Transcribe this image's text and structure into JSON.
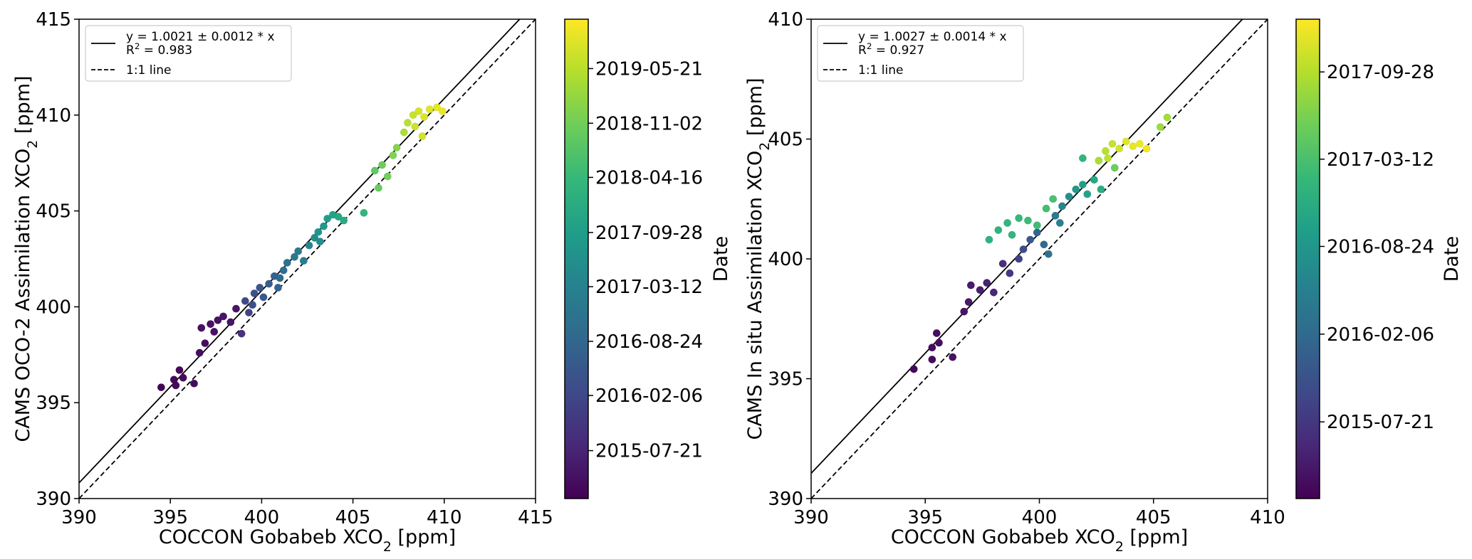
{
  "chart_data": [
    {
      "type": "scatter",
      "xlabel": "COCCON Gobabeb XCO₂ [ppm]",
      "ylabel": "CAMS OCO-2 Assimilation XCO₂ [ppm]",
      "xlim": [
        390,
        415
      ],
      "ylim": [
        390,
        415
      ],
      "xticks": [
        "390",
        "395",
        "400",
        "405",
        "410",
        "415"
      ],
      "yticks": [
        "390",
        "395",
        "400",
        "405",
        "410",
        "415"
      ],
      "fit_line": {
        "slope": 1.0021,
        "intercept": 0,
        "label": "y = 1.0021 ± 0.0012 * x"
      },
      "r2_label": "R² = 0.983",
      "one_to_one_label": "1:1 line",
      "legend_position": "upper left",
      "colorbar": {
        "label": "Date",
        "ticks": [
          "2015-07-21",
          "2016-02-06",
          "2016-08-24",
          "2017-03-12",
          "2017-09-28",
          "2018-04-16",
          "2018-11-02",
          "2019-05-21"
        ],
        "colormap": "viridis"
      },
      "points": [
        [
          394.5,
          395.8,
          0.01
        ],
        [
          395.2,
          396.2,
          0.02
        ],
        [
          395.5,
          396.7,
          0.02
        ],
        [
          395.7,
          396.3,
          0.03
        ],
        [
          396.3,
          396.0,
          0.03
        ],
        [
          395.3,
          395.9,
          0.02
        ],
        [
          396.6,
          397.6,
          0.04
        ],
        [
          396.9,
          398.1,
          0.04
        ],
        [
          396.7,
          398.9,
          0.05
        ],
        [
          397.2,
          399.1,
          0.05
        ],
        [
          397.6,
          399.3,
          0.05
        ],
        [
          397.9,
          399.5,
          0.06
        ],
        [
          398.3,
          399.2,
          0.06
        ],
        [
          397.4,
          398.7,
          0.05
        ],
        [
          398.6,
          399.9,
          0.06
        ],
        [
          399.1,
          400.3,
          0.22
        ],
        [
          399.6,
          400.7,
          0.25
        ],
        [
          399.9,
          401.0,
          0.27
        ],
        [
          400.1,
          400.5,
          0.28
        ],
        [
          400.4,
          401.2,
          0.3
        ],
        [
          400.7,
          401.6,
          0.32
        ],
        [
          399.5,
          400.1,
          0.24
        ],
        [
          400.9,
          401.0,
          0.33
        ],
        [
          401.2,
          401.9,
          0.36
        ],
        [
          401.4,
          402.3,
          0.38
        ],
        [
          401.8,
          402.6,
          0.4
        ],
        [
          402.0,
          402.9,
          0.42
        ],
        [
          402.3,
          402.4,
          0.43
        ],
        [
          401.0,
          401.5,
          0.34
        ],
        [
          402.6,
          403.2,
          0.46
        ],
        [
          402.9,
          403.6,
          0.49
        ],
        [
          403.1,
          403.9,
          0.52
        ],
        [
          403.4,
          404.2,
          0.54
        ],
        [
          403.6,
          404.6,
          0.56
        ],
        [
          403.9,
          404.8,
          0.58
        ],
        [
          404.2,
          404.7,
          0.6
        ],
        [
          404.5,
          404.5,
          0.61
        ],
        [
          403.2,
          403.4,
          0.5
        ],
        [
          398.9,
          398.6,
          0.15
        ],
        [
          399.3,
          399.7,
          0.2
        ],
        [
          405.6,
          404.9,
          0.66
        ],
        [
          406.2,
          407.1,
          0.76
        ],
        [
          406.6,
          407.4,
          0.78
        ],
        [
          406.9,
          406.8,
          0.79
        ],
        [
          407.2,
          407.9,
          0.81
        ],
        [
          407.4,
          408.3,
          0.82
        ],
        [
          406.4,
          406.2,
          0.77
        ],
        [
          407.8,
          409.1,
          0.88
        ],
        [
          408.0,
          409.6,
          0.9
        ],
        [
          408.3,
          410.0,
          0.92
        ],
        [
          408.6,
          410.2,
          0.94
        ],
        [
          408.9,
          409.9,
          0.95
        ],
        [
          409.2,
          410.3,
          0.96
        ],
        [
          409.6,
          410.4,
          0.97
        ],
        [
          409.9,
          410.2,
          0.98
        ],
        [
          408.4,
          409.4,
          0.93
        ],
        [
          408.8,
          408.9,
          0.94
        ]
      ]
    },
    {
      "type": "scatter",
      "xlabel": "COCCON Gobabeb XCO₂ [ppm]",
      "ylabel": "CAMS In situ Assimilation XCO₂ [ppm]",
      "xlim": [
        390,
        410
      ],
      "ylim": [
        390,
        410
      ],
      "xticks": [
        "390",
        "395",
        "400",
        "405",
        "410"
      ],
      "yticks": [
        "390",
        "395",
        "400",
        "405",
        "410"
      ],
      "fit_line": {
        "slope": 1.0027,
        "intercept": 0,
        "label": "y = 1.0027 ± 0.0014 * x"
      },
      "r2_label": "R² = 0.927",
      "one_to_one_label": "1:1 line",
      "legend_position": "upper left",
      "colorbar": {
        "label": "Date",
        "ticks": [
          "2015-07-21",
          "2016-02-06",
          "2016-08-24",
          "2017-03-12",
          "2017-09-28"
        ],
        "colormap": "viridis"
      },
      "points": [
        [
          394.5,
          395.4,
          0.02
        ],
        [
          395.3,
          396.3,
          0.03
        ],
        [
          395.5,
          396.9,
          0.04
        ],
        [
          395.6,
          396.5,
          0.04
        ],
        [
          395.3,
          395.8,
          0.03
        ],
        [
          396.2,
          395.9,
          0.05
        ],
        [
          396.7,
          397.8,
          0.06
        ],
        [
          396.9,
          398.2,
          0.07
        ],
        [
          397.0,
          398.9,
          0.08
        ],
        [
          397.4,
          398.7,
          0.09
        ],
        [
          397.7,
          399.0,
          0.1
        ],
        [
          398.0,
          398.6,
          0.11
        ],
        [
          398.4,
          399.8,
          0.14
        ],
        [
          398.7,
          399.4,
          0.17
        ],
        [
          399.1,
          400.0,
          0.2
        ],
        [
          399.3,
          400.4,
          0.24
        ],
        [
          399.6,
          400.8,
          0.28
        ],
        [
          399.9,
          401.1,
          0.32
        ],
        [
          400.2,
          400.6,
          0.35
        ],
        [
          400.4,
          400.2,
          0.38
        ],
        [
          400.7,
          401.8,
          0.42
        ],
        [
          401.0,
          402.2,
          0.46
        ],
        [
          401.3,
          402.6,
          0.5
        ],
        [
          401.6,
          402.9,
          0.53
        ],
        [
          401.9,
          403.1,
          0.56
        ],
        [
          402.1,
          402.7,
          0.58
        ],
        [
          402.4,
          403.3,
          0.6
        ],
        [
          402.7,
          402.9,
          0.62
        ],
        [
          400.9,
          401.5,
          0.44
        ],
        [
          398.2,
          401.2,
          0.65
        ],
        [
          398.6,
          401.5,
          0.66
        ],
        [
          399.1,
          401.7,
          0.67
        ],
        [
          399.5,
          401.6,
          0.68
        ],
        [
          399.9,
          401.4,
          0.69
        ],
        [
          400.3,
          402.1,
          0.7
        ],
        [
          400.6,
          402.5,
          0.71
        ],
        [
          397.8,
          400.8,
          0.64
        ],
        [
          398.8,
          401.0,
          0.66
        ],
        [
          402.6,
          404.1,
          0.88
        ],
        [
          402.9,
          404.5,
          0.9
        ],
        [
          403.2,
          404.8,
          0.92
        ],
        [
          403.5,
          404.6,
          0.94
        ],
        [
          403.8,
          404.9,
          0.96
        ],
        [
          404.1,
          404.7,
          0.97
        ],
        [
          404.4,
          404.8,
          0.98
        ],
        [
          404.7,
          404.6,
          0.99
        ],
        [
          403.0,
          404.2,
          0.91
        ],
        [
          405.3,
          405.5,
          0.86
        ],
        [
          405.6,
          405.9,
          0.87
        ],
        [
          403.3,
          403.8,
          0.78
        ],
        [
          401.9,
          404.2,
          0.66
        ]
      ]
    }
  ]
}
